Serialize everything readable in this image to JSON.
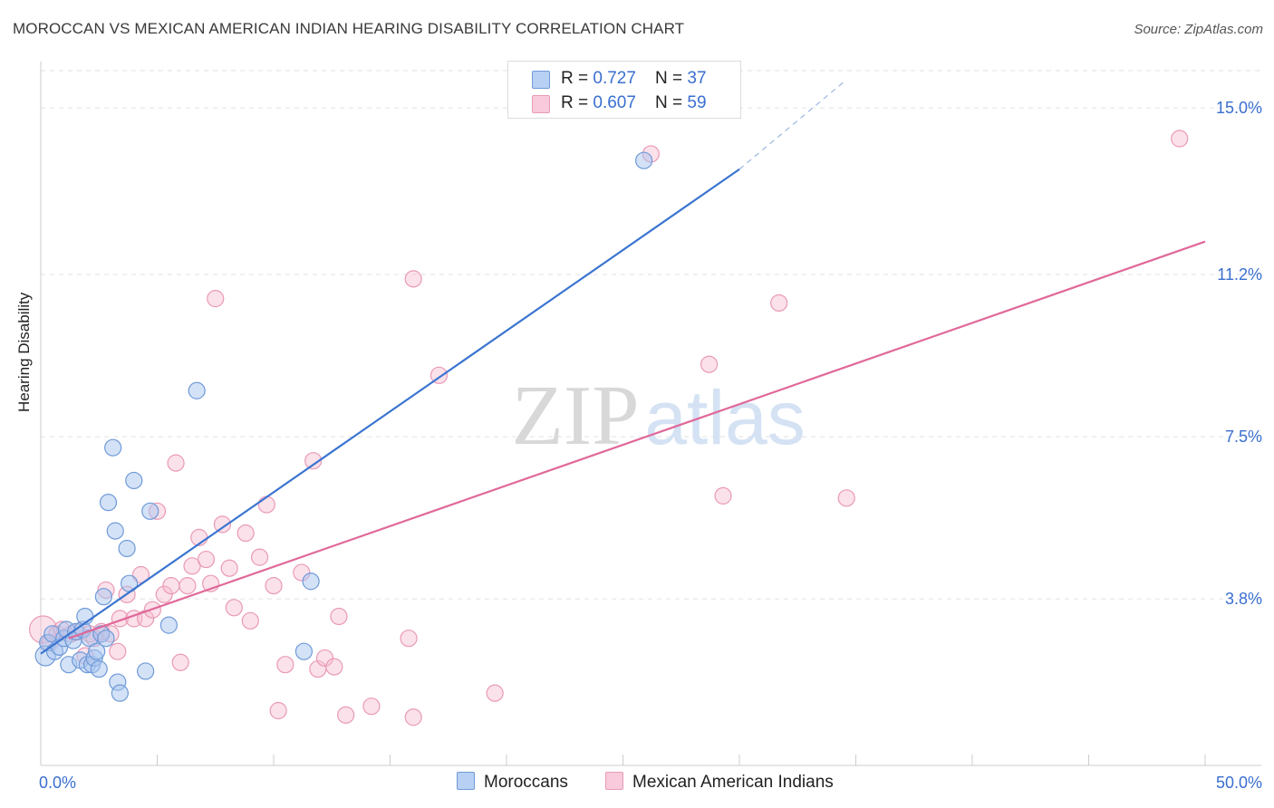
{
  "title": "MOROCCAN VS MEXICAN AMERICAN INDIAN HEARING DISABILITY CORRELATION CHART",
  "source": "Source: ZipAtlas.com",
  "legend": {
    "moroccan": {
      "r_label": "R = ",
      "r_value": "0.727",
      "n_label": "N = ",
      "n_value": "37"
    },
    "mexican": {
      "r_label": "R = ",
      "r_value": "0.607",
      "n_label": "N = ",
      "n_value": "59"
    }
  },
  "colors": {
    "moroccan_fill": "#a9c6f0",
    "moroccan_stroke": "#6f9ad8",
    "moroccan_line": "#3a74d0",
    "mexican_fill": "#f6bdd0",
    "mexican_stroke": "#e99ab6",
    "mexican_line": "#e0689a",
    "axis_text": "#3a6fd0"
  },
  "chart_data": {
    "type": "scatter",
    "xlabel": "",
    "ylabel": "Hearing Disability",
    "xlim": [
      0,
      50
    ],
    "ylim": [
      0,
      15.0
    ],
    "x_tick_labels": [
      "0.0%",
      "50.0%"
    ],
    "y_ticks": [
      3.8,
      7.5,
      11.2,
      15.0
    ],
    "y_tick_labels": [
      "3.8%",
      "7.5%",
      "11.2%",
      "15.0%"
    ],
    "grid": "horizontal dashed",
    "legend_position": "top-center",
    "series": [
      {
        "name": "Moroccans",
        "points": [
          [
            0.2,
            2.5
          ],
          [
            0.3,
            2.8
          ],
          [
            0.5,
            3.0
          ],
          [
            0.6,
            2.6
          ],
          [
            0.8,
            2.7
          ],
          [
            1.0,
            2.9
          ],
          [
            1.1,
            3.1
          ],
          [
            1.2,
            2.3
          ],
          [
            1.4,
            2.85
          ],
          [
            1.5,
            3.05
          ],
          [
            1.7,
            2.4
          ],
          [
            1.8,
            3.1
          ],
          [
            1.9,
            3.4
          ],
          [
            2.0,
            2.3
          ],
          [
            2.1,
            2.9
          ],
          [
            2.2,
            2.3
          ],
          [
            2.3,
            2.45
          ],
          [
            2.4,
            2.6
          ],
          [
            2.5,
            2.2
          ],
          [
            2.6,
            3.0
          ],
          [
            2.7,
            3.85
          ],
          [
            2.8,
            2.9
          ],
          [
            2.9,
            6.0
          ],
          [
            3.1,
            7.25
          ],
          [
            3.2,
            5.35
          ],
          [
            3.3,
            1.9
          ],
          [
            3.4,
            1.65
          ],
          [
            3.7,
            4.95
          ],
          [
            3.8,
            4.15
          ],
          [
            4.0,
            6.5
          ],
          [
            4.5,
            2.15
          ],
          [
            4.7,
            5.8
          ],
          [
            5.5,
            3.2
          ],
          [
            6.7,
            8.55
          ],
          [
            11.3,
            2.6
          ],
          [
            11.6,
            4.2
          ],
          [
            25.9,
            13.8
          ]
        ]
      },
      {
        "name": "Mexican American Indians",
        "points": [
          [
            0.1,
            3.1
          ],
          [
            0.4,
            2.8
          ],
          [
            0.7,
            3.0
          ],
          [
            0.9,
            3.1
          ],
          [
            1.3,
            3.0
          ],
          [
            1.6,
            3.05
          ],
          [
            1.9,
            2.5
          ],
          [
            2.1,
            3.0
          ],
          [
            2.3,
            2.9
          ],
          [
            2.6,
            3.05
          ],
          [
            2.8,
            4.0
          ],
          [
            3.0,
            3.0
          ],
          [
            3.3,
            2.6
          ],
          [
            3.4,
            3.35
          ],
          [
            3.7,
            3.9
          ],
          [
            4.0,
            3.35
          ],
          [
            4.3,
            4.35
          ],
          [
            4.5,
            3.35
          ],
          [
            4.8,
            3.55
          ],
          [
            5.0,
            5.8
          ],
          [
            5.3,
            3.9
          ],
          [
            5.6,
            4.1
          ],
          [
            5.8,
            6.9
          ],
          [
            6.0,
            2.35
          ],
          [
            6.3,
            4.1
          ],
          [
            6.5,
            4.55
          ],
          [
            6.8,
            5.2
          ],
          [
            7.1,
            4.7
          ],
          [
            7.3,
            4.15
          ],
          [
            7.5,
            10.65
          ],
          [
            7.8,
            5.5
          ],
          [
            8.1,
            4.5
          ],
          [
            8.3,
            3.6
          ],
          [
            8.8,
            5.3
          ],
          [
            9.0,
            3.3
          ],
          [
            9.4,
            4.75
          ],
          [
            9.7,
            5.95
          ],
          [
            10.0,
            4.1
          ],
          [
            10.2,
            1.25
          ],
          [
            10.5,
            2.3
          ],
          [
            11.2,
            4.4
          ],
          [
            11.7,
            6.95
          ],
          [
            11.9,
            2.2
          ],
          [
            12.2,
            2.45
          ],
          [
            12.6,
            2.25
          ],
          [
            12.8,
            3.4
          ],
          [
            13.1,
            1.15
          ],
          [
            14.2,
            1.35
          ],
          [
            15.8,
            2.9
          ],
          [
            16.0,
            1.1
          ],
          [
            16.0,
            11.1
          ],
          [
            17.1,
            8.9
          ],
          [
            19.5,
            1.65
          ],
          [
            26.2,
            13.95
          ],
          [
            28.7,
            9.15
          ],
          [
            29.3,
            6.15
          ],
          [
            31.7,
            10.55
          ],
          [
            34.6,
            6.1
          ],
          [
            48.9,
            14.3
          ]
        ]
      }
    ],
    "trend_lines": [
      {
        "series": "Moroccans",
        "x": [
          0,
          30
        ],
        "y": [
          2.55,
          13.6
        ],
        "dashed_extension_to": [
          34.5,
          15.6
        ]
      },
      {
        "series": "Mexican American Indians",
        "x": [
          1.2,
          50
        ],
        "y": [
          2.9,
          11.95
        ]
      }
    ]
  },
  "bottom_legend": {
    "moroccan_label": "Moroccans",
    "mexican_label": "Mexican American Indians"
  },
  "watermark": {
    "zip": "ZIP",
    "atlas": "atlas"
  }
}
